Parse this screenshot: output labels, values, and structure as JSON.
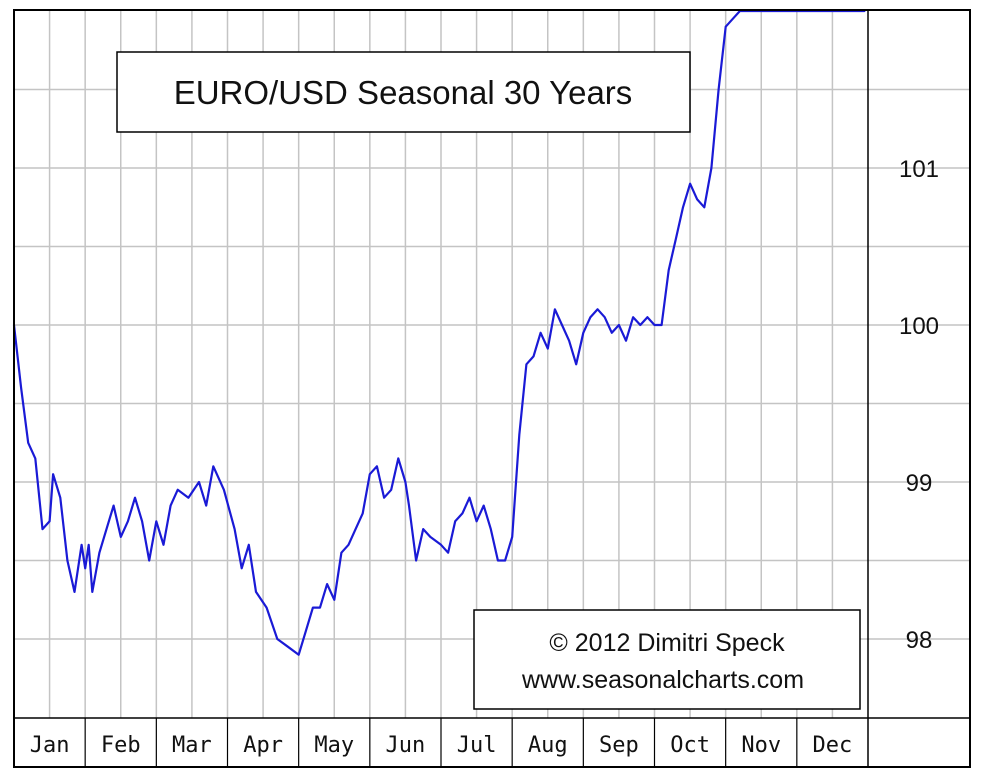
{
  "colors": {
    "line": "#1a1ad6",
    "grid": "#c4c4c4",
    "frame": "#000000",
    "background": "#ffffff"
  },
  "chart_data": {
    "type": "line",
    "title": "EURO/USD Seasonal 30 Years",
    "xlabel": "",
    "ylabel": "",
    "x_unit": "month of year (0 = Jan 1, 12 = Dec 31)",
    "xlim": [
      0,
      12
    ],
    "ylim": [
      97.5,
      102
    ],
    "yticks": [
      98,
      99,
      100,
      101
    ],
    "grid": true,
    "legend": "none",
    "categories": [
      "Jan",
      "Feb",
      "Mar",
      "Apr",
      "May",
      "Jun",
      "Jul",
      "Aug",
      "Sep",
      "Oct",
      "Nov",
      "Dec"
    ],
    "annotations": [
      "© 2012 Dimitri Speck",
      "www.seasonalcharts.com"
    ],
    "series": [
      {
        "name": "",
        "x": [
          0,
          0.1,
          0.2,
          0.3,
          0.4,
          0.5,
          0.55,
          0.65,
          0.75,
          0.85,
          0.95,
          1.0,
          1.05,
          1.1,
          1.2,
          1.3,
          1.4,
          1.5,
          1.6,
          1.7,
          1.8,
          1.9,
          2.0,
          2.1,
          2.2,
          2.3,
          2.45,
          2.6,
          2.7,
          2.8,
          2.95,
          3.1,
          3.2,
          3.3,
          3.4,
          3.55,
          3.7,
          3.85,
          4.0,
          4.1,
          4.2,
          4.3,
          4.4,
          4.5,
          4.6,
          4.7,
          4.8,
          4.9,
          5.0,
          5.1,
          5.2,
          5.3,
          5.4,
          5.5,
          5.55,
          5.65,
          5.75,
          5.85,
          6.0,
          6.1,
          6.2,
          6.3,
          6.4,
          6.5,
          6.6,
          6.7,
          6.8,
          6.9,
          7.0,
          7.1,
          7.2,
          7.3,
          7.4,
          7.5,
          7.6,
          7.7,
          7.8,
          7.9,
          8.0,
          8.1,
          8.2,
          8.3,
          8.4,
          8.5,
          8.6,
          8.7,
          8.8,
          8.9,
          9.0,
          9.1,
          9.2,
          9.3,
          9.4,
          9.5,
          9.6,
          9.7,
          9.8,
          9.9,
          10.0,
          10.1,
          10.2,
          10.3,
          10.4,
          10.5,
          10.6,
          10.7,
          10.8,
          10.9,
          11.0,
          11.1,
          11.2,
          11.3,
          11.4,
          11.5,
          11.6,
          11.7,
          11.8,
          11.9,
          11.95
        ],
        "values": [
          100.0,
          99.6,
          99.25,
          99.15,
          98.7,
          98.75,
          99.05,
          98.9,
          98.5,
          98.3,
          98.6,
          98.45,
          98.6,
          98.3,
          98.55,
          98.7,
          98.85,
          98.65,
          98.75,
          98.9,
          98.75,
          98.5,
          98.75,
          98.6,
          98.85,
          98.95,
          98.9,
          99.0,
          98.85,
          99.1,
          98.95,
          98.7,
          98.45,
          98.6,
          98.3,
          98.2,
          98.0,
          97.95,
          97.9,
          98.05,
          98.2,
          98.2,
          98.35,
          98.25,
          98.55,
          98.6,
          98.7,
          98.8,
          99.05,
          99.1,
          98.9,
          98.95,
          99.15,
          99.0,
          98.85,
          98.5,
          98.7,
          98.65,
          98.6,
          98.55,
          98.75,
          98.8,
          98.9,
          98.75,
          98.85,
          98.7,
          98.5,
          98.5,
          98.65,
          99.3,
          99.75,
          99.8,
          99.95,
          99.85,
          100.1,
          100.0,
          99.9,
          99.75,
          99.95,
          100.05,
          100.1,
          100.05,
          99.95,
          100.0,
          99.9,
          100.05,
          100.0,
          100.05,
          100.0,
          100.0,
          100.35,
          100.55,
          100.75,
          100.9,
          100.8,
          100.75,
          101.0,
          101.5,
          101.9,
          101.95,
          102.0,
          102.0,
          102.0,
          102.0,
          102.0,
          102.0,
          102.0,
          102.0,
          102.0,
          102.0,
          102.0,
          102.0,
          102.0,
          102.0,
          102.0,
          102.0,
          102.0,
          102.0,
          102.0
        ]
      }
    ]
  }
}
